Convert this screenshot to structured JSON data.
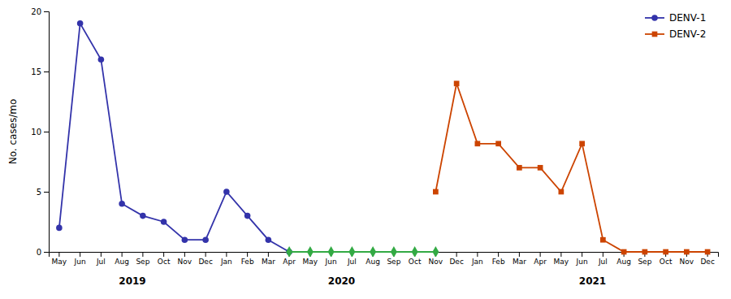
{
  "chart_data": {
    "type": "line",
    "ylabel": "No. cases/mo",
    "categories": [
      "May",
      "Jun",
      "Jul",
      "Aug",
      "Sep",
      "Oct",
      "Nov",
      "Dec",
      "Jan",
      "Feb",
      "Mar",
      "Apr",
      "May",
      "Jun",
      "Jul",
      "Aug",
      "Sep",
      "Oct",
      "Nov",
      "Dec",
      "Jan",
      "Feb",
      "Mar",
      "Apr",
      "May",
      "Jun",
      "Jul",
      "Aug",
      "Sep",
      "Oct",
      "Nov",
      "Dec"
    ],
    "series": [
      {
        "name": "DENV-1",
        "color": "#3333aa",
        "marker": "circle",
        "values": [
          2,
          19,
          16,
          4,
          3,
          2.5,
          1,
          1,
          5,
          3,
          1,
          0,
          null,
          null,
          null,
          null,
          null,
          null,
          null,
          null,
          null,
          null,
          null,
          null,
          null,
          null,
          null,
          null,
          null,
          null,
          null,
          null
        ]
      },
      {
        "color": "#33aa44",
        "marker": "diamond",
        "values": [
          null,
          null,
          null,
          null,
          null,
          null,
          null,
          null,
          null,
          null,
          null,
          0,
          0,
          0,
          0,
          0,
          0,
          0,
          0,
          null,
          null,
          null,
          null,
          null,
          null,
          null,
          null,
          null,
          null,
          null,
          null,
          null
        ]
      },
      {
        "name": "DENV-2",
        "color": "#cc4400",
        "marker": "square",
        "values": [
          null,
          null,
          null,
          null,
          null,
          null,
          null,
          null,
          null,
          null,
          null,
          null,
          null,
          null,
          null,
          null,
          null,
          null,
          5,
          14,
          9,
          9,
          7,
          7,
          5,
          9,
          1,
          0,
          0,
          0,
          0,
          0
        ]
      }
    ],
    "ylim": [
      0,
      20
    ],
    "yticks": [
      0,
      5,
      10,
      15,
      20
    ],
    "grid": false,
    "legend": "upper right",
    "annotations": [
      {
        "text": "2019",
        "x": 3.5
      },
      {
        "text": "2020",
        "x": 13.5
      },
      {
        "text": "2021",
        "x": 25.5
      }
    ]
  }
}
